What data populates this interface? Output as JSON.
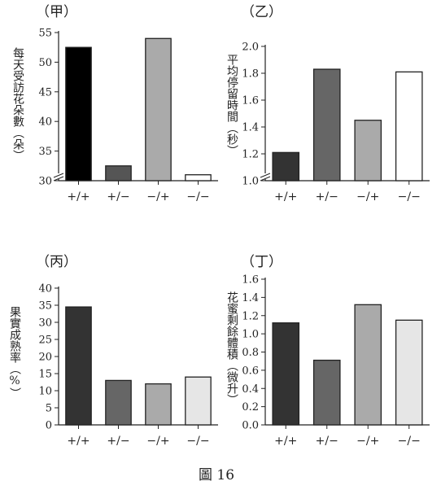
{
  "figure_caption": "圖 16",
  "chart_data": [
    {
      "type": "bar",
      "panel_label": "（甲）",
      "ylabel": "每天受訪花朵數（朵）",
      "categories": [
        "+/+",
        "+/−",
        "−/+",
        "−/−"
      ],
      "values": [
        52.5,
        32.5,
        54,
        31
      ],
      "ylim": [
        30,
        55
      ],
      "yticks": [
        "30",
        "35",
        "40",
        "45",
        "50",
        "55"
      ],
      "axis_break": true,
      "colors": [
        "#000000",
        "#555555",
        "#aaaaaa",
        "#ffffff"
      ]
    },
    {
      "type": "bar",
      "panel_label": "（乙）",
      "ylabel": "平均停留時間（秒）",
      "categories": [
        "+/+",
        "+/−",
        "−/+",
        "−/−"
      ],
      "values": [
        1.21,
        1.83,
        1.45,
        1.81
      ],
      "ylim": [
        1.0,
        2.0
      ],
      "yticks": [
        "1.0",
        "1.2",
        "1.4",
        "1.6",
        "1.8",
        "2.0"
      ],
      "axis_break": true,
      "colors": [
        "#333333",
        "#666666",
        "#aaaaaa",
        "#ffffff"
      ]
    },
    {
      "type": "bar",
      "panel_label": "（丙）",
      "ylabel": "果實成熟率（%）",
      "categories": [
        "+/+",
        "+/−",
        "−/+",
        "−/−"
      ],
      "values": [
        34.5,
        13,
        12,
        14
      ],
      "ylim": [
        0,
        40
      ],
      "yticks": [
        "0",
        "5",
        "10",
        "15",
        "20",
        "25",
        "30",
        "35",
        "40"
      ],
      "axis_break": false,
      "colors": [
        "#333333",
        "#666666",
        "#aaaaaa",
        "#e6e6e6"
      ]
    },
    {
      "type": "bar",
      "panel_label": "（丁）",
      "ylabel": "花蜜剩餘體積（微升）",
      "categories": [
        "+/+",
        "+/−",
        "−/+",
        "−/−"
      ],
      "values": [
        1.12,
        0.71,
        1.32,
        1.15
      ],
      "ylim": [
        0.0,
        1.6
      ],
      "yticks": [
        "0.0",
        "0.2",
        "0.4",
        "0.6",
        "0.8",
        "1.0",
        "1.2",
        "1.4",
        "1.6"
      ],
      "axis_break": false,
      "colors": [
        "#333333",
        "#666666",
        "#aaaaaa",
        "#e6e6e6"
      ]
    }
  ]
}
